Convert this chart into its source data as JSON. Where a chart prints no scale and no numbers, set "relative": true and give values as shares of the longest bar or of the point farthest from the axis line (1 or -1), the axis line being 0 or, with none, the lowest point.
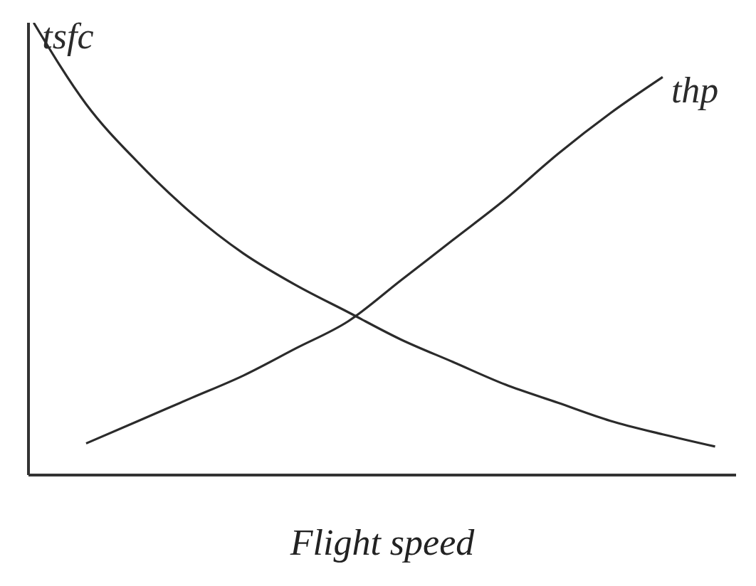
{
  "chart_data": {
    "type": "line",
    "xlabel": "Flight speed",
    "relative": true,
    "legend": false,
    "grid": false,
    "marker": "none",
    "line_style": "solid",
    "categories": [
      null,
      null,
      null,
      null,
      null,
      null,
      null,
      null,
      null,
      null,
      null,
      null,
      null,
      null
    ],
    "series": [
      {
        "name": "tsfc",
        "color": "#2b2b2b",
        "values": [
          1,
          0.82,
          0.69,
          0.58,
          0.49,
          0.42,
          0.36,
          0.3,
          0.25,
          0.2,
          0.16,
          0.12,
          0.09,
          0.063
        ]
      },
      {
        "name": "thp",
        "color": "#2b2b2b",
        "values": [
          null,
          0.07,
          0.12,
          0.17,
          0.22,
          0.28,
          0.34,
          0.43,
          0.52,
          0.61,
          0.71,
          0.8,
          0.88,
          null
        ]
      }
    ]
  }
}
